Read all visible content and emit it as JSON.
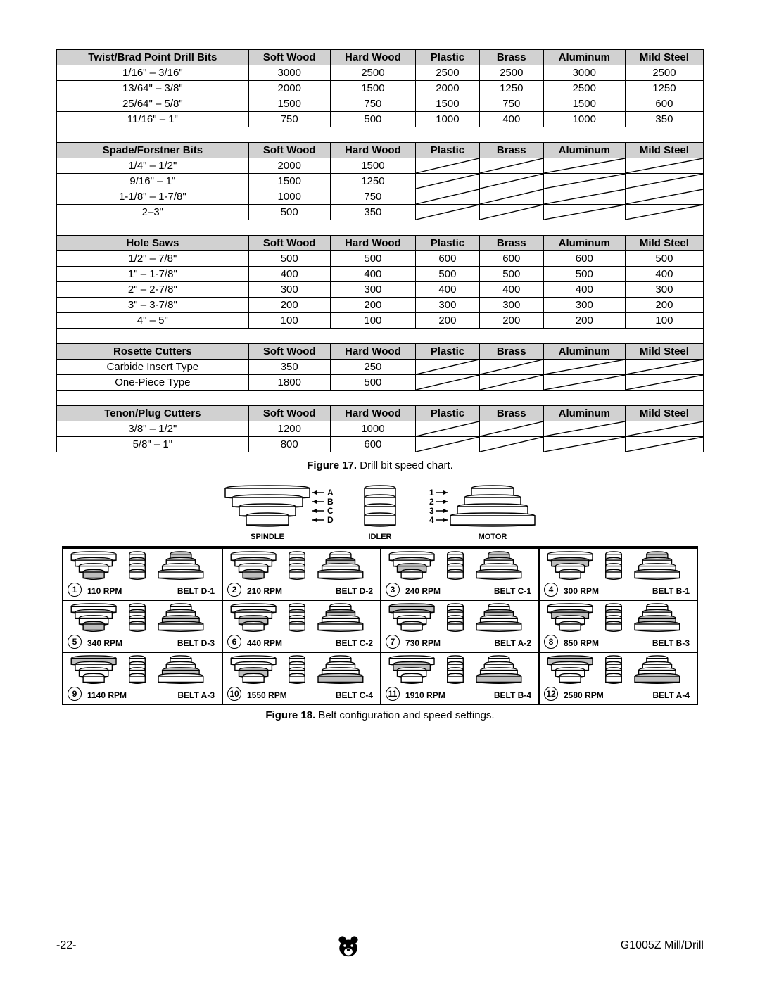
{
  "columns": [
    "Soft Wood",
    "Hard Wood",
    "Plastic",
    "Brass",
    "Aluminum",
    "Mild Steel"
  ],
  "sections": [
    {
      "title": "Twist/Brad Point Drill Bits",
      "rows": [
        {
          "label": "1/16\" – 3/16\"",
          "v": [
            "3000",
            "2500",
            "2500",
            "2500",
            "3000",
            "2500"
          ]
        },
        {
          "label": "13/64\" – 3/8\"",
          "v": [
            "2000",
            "1500",
            "2000",
            "1250",
            "2500",
            "1250"
          ]
        },
        {
          "label": "25/64\" – 5/8\"",
          "v": [
            "1500",
            "750",
            "1500",
            "750",
            "1500",
            "600"
          ]
        },
        {
          "label": "11/16\" – 1\"",
          "v": [
            "750",
            "500",
            "1000",
            "400",
            "1000",
            "350"
          ]
        }
      ]
    },
    {
      "title": "Spade/Forstner Bits",
      "rows": [
        {
          "label": "1/4\" – 1/2\"",
          "v": [
            "2000",
            "1500",
            "/",
            "/",
            "/",
            "/"
          ]
        },
        {
          "label": "9/16\" – 1\"",
          "v": [
            "1500",
            "1250",
            "/",
            "/",
            "/",
            "/"
          ]
        },
        {
          "label": "1-1/8\" – 1-7/8\"",
          "v": [
            "1000",
            "750",
            "/",
            "/",
            "/",
            "/"
          ]
        },
        {
          "label": "2–3\"",
          "v": [
            "500",
            "350",
            "/",
            "/",
            "/",
            "/"
          ]
        }
      ]
    },
    {
      "title": "Hole Saws",
      "rows": [
        {
          "label": "1/2\" – 7/8\"",
          "v": [
            "500",
            "500",
            "600",
            "600",
            "600",
            "500"
          ]
        },
        {
          "label": "1\" – 1-7/8\"",
          "v": [
            "400",
            "400",
            "500",
            "500",
            "500",
            "400"
          ]
        },
        {
          "label": "2\" – 2-7/8\"",
          "v": [
            "300",
            "300",
            "400",
            "400",
            "400",
            "300"
          ]
        },
        {
          "label": "3\" – 3-7/8\"",
          "v": [
            "200",
            "200",
            "300",
            "300",
            "300",
            "200"
          ]
        },
        {
          "label": "4\" – 5\"",
          "v": [
            "100",
            "100",
            "200",
            "200",
            "200",
            "100"
          ]
        }
      ]
    },
    {
      "title": "Rosette Cutters",
      "rows": [
        {
          "label": "Carbide Insert Type",
          "v": [
            "350",
            "250",
            "/",
            "/",
            "/",
            "/"
          ]
        },
        {
          "label": "One-Piece Type",
          "v": [
            "1800",
            "500",
            "/",
            "/",
            "/",
            "/"
          ]
        }
      ]
    },
    {
      "title": "Tenon/Plug Cutters",
      "rows": [
        {
          "label": "3/8\" – 1/2\"",
          "v": [
            "1200",
            "1000",
            "/",
            "/",
            "/",
            "/"
          ]
        },
        {
          "label": "5/8\" – 1\"",
          "v": [
            "800",
            "600",
            "/",
            "/",
            "/",
            "/"
          ]
        }
      ]
    }
  ],
  "fig17_bold": "Figure 17.",
  "fig17_rest": " Drill bit speed chart.",
  "fig18_bold": "Figure 18.",
  "fig18_rest": " Belt configuration and speed settings.",
  "legend": {
    "spindle": "SPINDLE",
    "idler": "IDLER",
    "motor": "MOTOR",
    "left_labels": [
      "A",
      "B",
      "C",
      "D"
    ],
    "right_labels": [
      "1",
      "2",
      "3",
      "4"
    ]
  },
  "belt_cells": [
    {
      "n": "1",
      "rpm": "110 RPM",
      "belt": "BELT D-1",
      "hi": [
        3,
        0
      ]
    },
    {
      "n": "2",
      "rpm": "210 RPM",
      "belt": "BELT D-2",
      "hi": [
        3,
        1
      ]
    },
    {
      "n": "3",
      "rpm": "240 RPM",
      "belt": "BELT C-1",
      "hi": [
        2,
        0
      ]
    },
    {
      "n": "4",
      "rpm": "300 RPM",
      "belt": "BELT B-1",
      "hi": [
        1,
        0
      ]
    },
    {
      "n": "5",
      "rpm": "340 RPM",
      "belt": "BELT D-3",
      "hi": [
        3,
        2
      ]
    },
    {
      "n": "6",
      "rpm": "440 RPM",
      "belt": "BELT C-2",
      "hi": [
        2,
        1
      ]
    },
    {
      "n": "7",
      "rpm": "730 RPM",
      "belt": "BELT A-2",
      "hi": [
        0,
        1
      ]
    },
    {
      "n": "8",
      "rpm": "850 RPM",
      "belt": "BELT B-3",
      "hi": [
        1,
        2
      ]
    },
    {
      "n": "9",
      "rpm": "1140 RPM",
      "belt": "BELT A-3",
      "hi": [
        0,
        2
      ]
    },
    {
      "n": "10",
      "rpm": "1550 RPM",
      "belt": "BELT C-4",
      "hi": [
        2,
        3
      ]
    },
    {
      "n": "11",
      "rpm": "1910 RPM",
      "belt": "BELT B-4",
      "hi": [
        1,
        3
      ]
    },
    {
      "n": "12",
      "rpm": "2580 RPM",
      "belt": "BELT A-4",
      "hi": [
        0,
        3
      ]
    }
  ],
  "footer": {
    "page": "-22-",
    "product": "G1005Z Mill/Drill"
  },
  "colors": {
    "header_bg": "#d1d1d1",
    "hi": "#bfbfbf"
  }
}
